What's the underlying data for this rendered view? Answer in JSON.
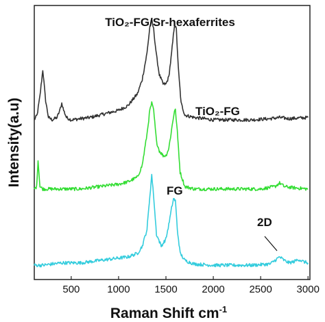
{
  "chart_data": {
    "type": "line",
    "xlabel": "Raman Shift cm",
    "xlabel_sup": "-1",
    "ylabel": "Intensity(a.u)",
    "xlim": [
      110,
      3020
    ],
    "x_ticks": [
      500,
      1000,
      1500,
      2000,
      2500,
      3000
    ],
    "y_ticks_shown": false,
    "grid": false,
    "legend": "none (inline labels)",
    "annotations": [
      {
        "id": "label-top",
        "text": "TiO₂-FG/Sr-hexaferrites",
        "color": "#111111"
      },
      {
        "id": "label-mid",
        "text": "TiO₂-FG",
        "color": "#111111"
      },
      {
        "id": "label-bottom",
        "text": "FG",
        "color": "#111111"
      },
      {
        "id": "label-2d",
        "text": "2D",
        "color": "#111111"
      }
    ],
    "series": [
      {
        "color": "#333333",
        "x": [
          110,
          140,
          170,
          200,
          230,
          260,
          300,
          350,
          380,
          400,
          420,
          450,
          500,
          600,
          700,
          800,
          900,
          1000,
          1100,
          1200,
          1250,
          1300,
          1330,
          1350,
          1370,
          1400,
          1430,
          1470,
          1500,
          1530,
          1560,
          1590,
          1610,
          1630,
          1660,
          1700,
          1800,
          1900,
          2000,
          2200,
          2400,
          2600,
          2700,
          2800,
          3000
        ],
        "y": [
          6.2,
          6.4,
          7.2,
          8.3,
          7.0,
          6.3,
          6.2,
          6.3,
          6.6,
          6.9,
          6.6,
          6.3,
          6.2,
          6.25,
          6.3,
          6.4,
          6.5,
          6.6,
          6.8,
          7.3,
          7.9,
          9.0,
          10.1,
          10.4,
          10.0,
          8.9,
          8.1,
          7.7,
          7.7,
          8.0,
          9.0,
          10.2,
          10.0,
          8.4,
          6.9,
          6.4,
          6.3,
          6.25,
          6.2,
          6.2,
          6.2,
          6.25,
          6.3,
          6.25,
          6.3
        ]
      },
      {
        "color": "#33dd33",
        "x": [
          110,
          135,
          150,
          170,
          200,
          250,
          300,
          400,
          500,
          600,
          700,
          800,
          900,
          1000,
          1100,
          1200,
          1250,
          1300,
          1330,
          1350,
          1370,
          1400,
          1430,
          1470,
          1500,
          1530,
          1560,
          1590,
          1600,
          1620,
          1650,
          1700,
          1800,
          2000,
          2200,
          2500,
          2650,
          2700,
          2750,
          2850,
          3000
        ],
        "y": [
          3.3,
          3.4,
          4.5,
          3.4,
          3.3,
          3.3,
          3.3,
          3.3,
          3.3,
          3.3,
          3.35,
          3.4,
          3.45,
          3.5,
          3.6,
          3.8,
          4.3,
          5.6,
          6.6,
          6.9,
          6.6,
          5.3,
          4.9,
          4.7,
          4.7,
          5.0,
          5.8,
          6.6,
          6.6,
          5.7,
          4.0,
          3.4,
          3.3,
          3.3,
          3.3,
          3.3,
          3.4,
          3.55,
          3.4,
          3.35,
          3.3
        ]
      },
      {
        "color": "#33ccdd",
        "x": [
          110,
          200,
          300,
          400,
          500,
          600,
          700,
          800,
          900,
          1000,
          1100,
          1200,
          1250,
          1300,
          1330,
          1350,
          1370,
          1400,
          1450,
          1500,
          1530,
          1560,
          1580,
          1600,
          1620,
          1650,
          1700,
          1800,
          2000,
          2200,
          2400,
          2600,
          2650,
          2700,
          2750,
          2800,
          2850,
          2900,
          2950,
          3000
        ],
        "y": [
          0.1,
          0.1,
          0.15,
          0.2,
          0.2,
          0.2,
          0.25,
          0.3,
          0.35,
          0.4,
          0.45,
          0.6,
          0.9,
          1.6,
          3.0,
          3.9,
          3.0,
          1.4,
          0.9,
          1.2,
          1.8,
          2.5,
          2.9,
          2.8,
          1.6,
          0.6,
          0.3,
          0.15,
          0.1,
          0.1,
          0.1,
          0.15,
          0.3,
          0.45,
          0.3,
          0.2,
          0.25,
          0.35,
          0.25,
          0.2
        ]
      }
    ]
  }
}
